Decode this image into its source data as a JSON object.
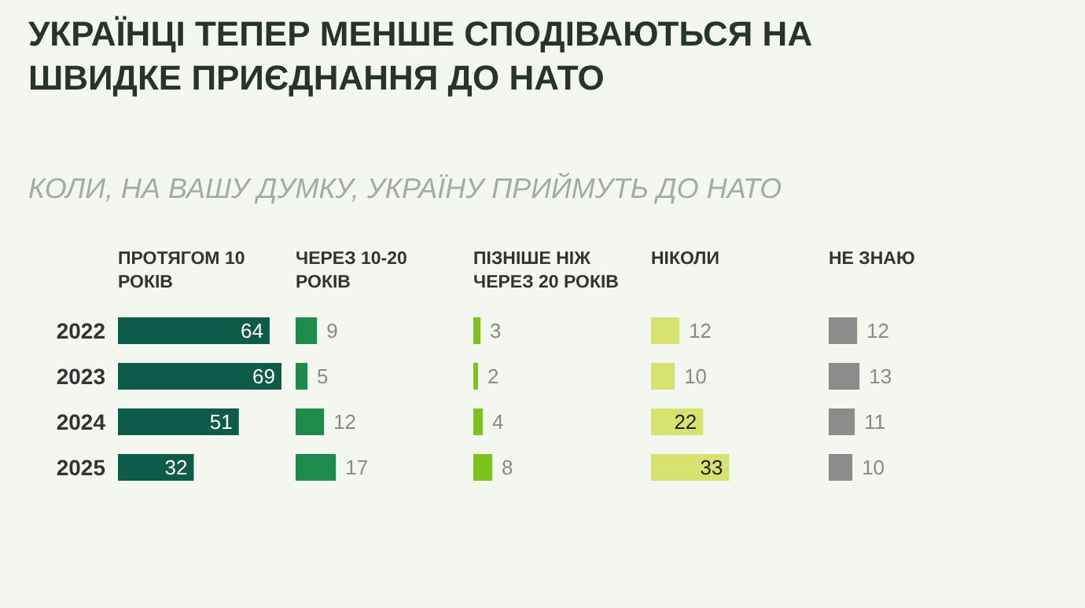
{
  "chart_data": [
    {
      "type": "bar",
      "orientation": "horizontal",
      "title": "УКРАЇНЦІ ТЕПЕР МЕНШЕ СПОДІВАЮТЬСЯ НА ШВИДКЕ ПРИЄДНАННЯ ДО НАТО",
      "subtitle": "КОЛИ, НА ВАШУ ДУМКУ, УКРАЇНУ ПРИЙМУТЬ ДО НАТО",
      "categories": [
        "2022",
        "2023",
        "2024",
        "2025"
      ],
      "data_labels": true,
      "tick_labels": "y",
      "series": [
        {
          "name": "ПРОТЯГОМ 10 РОКІВ",
          "color": "#0d5c4a",
          "values": [
            64,
            69,
            51,
            32
          ]
        }
      ]
    },
    {
      "type": "bar",
      "orientation": "horizontal",
      "categories": [
        "2022",
        "2023",
        "2024",
        "2025"
      ],
      "data_labels": true,
      "tick_labels": false,
      "series": [
        {
          "name": "ЧЕРЕЗ 10-20 РОКІВ",
          "color": "#1e8a4c",
          "values": [
            9,
            5,
            12,
            17
          ]
        }
      ]
    },
    {
      "type": "bar",
      "orientation": "horizontal",
      "categories": [
        "2022",
        "2023",
        "2024",
        "2025"
      ],
      "data_labels": true,
      "tick_labels": false,
      "series": [
        {
          "name": "ПІЗНІШЕ НІЖ ЧЕРЕЗ 20 РОКІВ",
          "color": "#7cc21c",
          "values": [
            3,
            2,
            4,
            8
          ]
        }
      ]
    },
    {
      "type": "bar",
      "orientation": "horizontal",
      "categories": [
        "2022",
        "2023",
        "2024",
        "2025"
      ],
      "data_labels": true,
      "tick_labels": false,
      "series": [
        {
          "name": "НІКОЛИ",
          "color": "#d6e36e",
          "values": [
            12,
            10,
            22,
            33
          ]
        }
      ]
    },
    {
      "type": "bar",
      "orientation": "horizontal",
      "categories": [
        "2022",
        "2023",
        "2024",
        "2025"
      ],
      "data_labels": true,
      "tick_labels": false,
      "series": [
        {
          "name": "НЕ ЗНАЮ",
          "color": "#8c8c8c",
          "values": [
            12,
            13,
            11,
            10
          ]
        }
      ]
    }
  ]
}
